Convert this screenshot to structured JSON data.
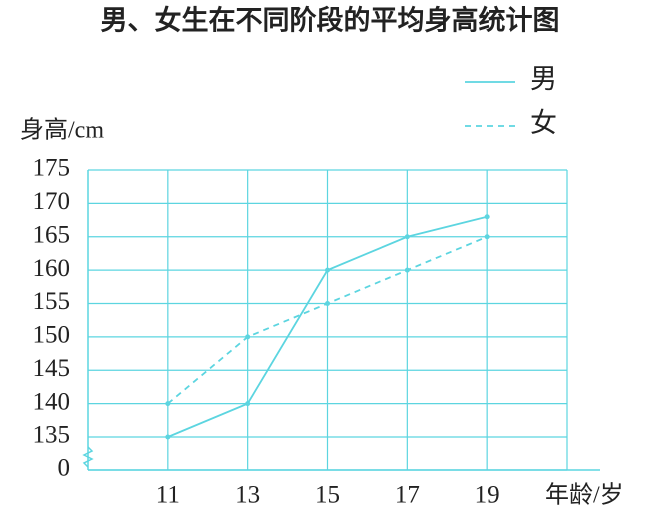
{
  "chart_data": {
    "type": "line",
    "title": "男、女生在不同阶段的平均身高统计图",
    "y_label": "身高/cm",
    "x_label": "年龄/岁",
    "x": [
      11,
      13,
      15,
      17,
      19
    ],
    "series": [
      {
        "name": "男",
        "color": "#5cd5e0",
        "dash": false,
        "values": [
          135,
          140,
          160,
          165,
          168
        ]
      },
      {
        "name": "女",
        "color": "#5cd5e0",
        "dash": true,
        "values": [
          140,
          150,
          155,
          160,
          165
        ]
      }
    ],
    "xlim": [
      9,
      21
    ],
    "xticks": [
      11,
      13,
      15,
      17,
      19
    ],
    "ylim": [
      0,
      175
    ],
    "yticks": [
      0,
      135,
      140,
      145,
      150,
      155,
      160,
      165,
      170,
      175
    ],
    "axis_break": [
      0,
      135
    ],
    "grid": true,
    "legend": "top-right"
  }
}
